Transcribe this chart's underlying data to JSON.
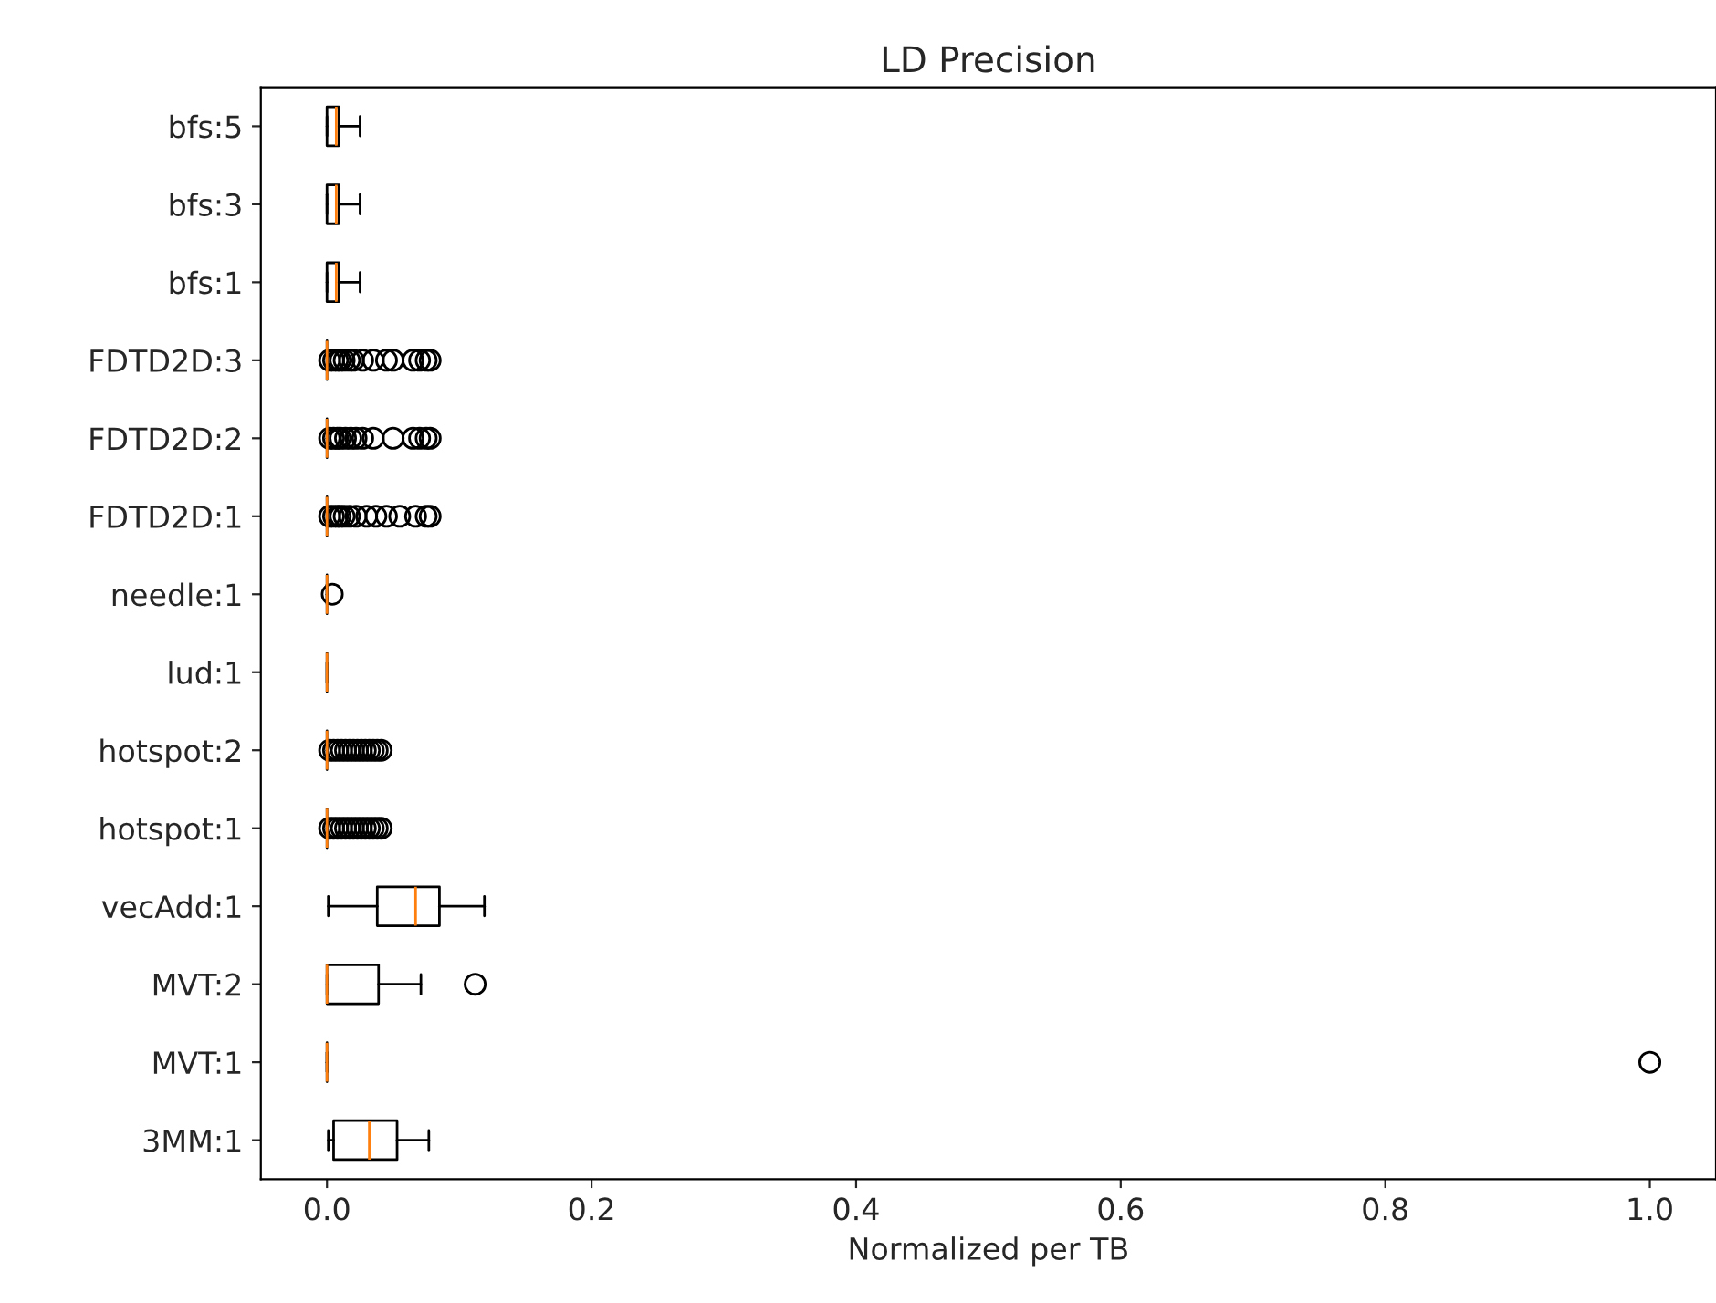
{
  "chart_data": {
    "type": "box",
    "title": "LD Precision",
    "xlabel": "Normalized per TB",
    "orientation": "horizontal",
    "categories": [
      "bfs:5",
      "bfs:3",
      "bfs:1",
      "FDTD2D:3",
      "FDTD2D:2",
      "FDTD2D:1",
      "needle:1",
      "lud:1",
      "hotspot:2",
      "hotspot:1",
      "vecAdd:1",
      "MVT:2",
      "MVT:1",
      "3MM:1"
    ],
    "boxes": [
      {
        "low": 0,
        "q1": 0,
        "median": 0.007,
        "q3": 0.009,
        "high": 0.025
      },
      {
        "low": 0,
        "q1": 0,
        "median": 0.007,
        "q3": 0.009,
        "high": 0.025
      },
      {
        "low": 0,
        "q1": 0,
        "median": 0.007,
        "q3": 0.009,
        "high": 0.025
      },
      {
        "low": 0,
        "q1": 0,
        "median": 0,
        "q3": 0,
        "high": 0,
        "outliers": [
          0.002,
          0.005,
          0.008,
          0.01,
          0.013,
          0.017,
          0.02,
          0.027,
          0.035,
          0.045,
          0.05,
          0.065,
          0.07,
          0.075,
          0.078
        ]
      },
      {
        "low": 0,
        "q1": 0,
        "median": 0,
        "q3": 0,
        "high": 0,
        "outliers": [
          0.002,
          0.005,
          0.008,
          0.01,
          0.014,
          0.018,
          0.022,
          0.027,
          0.035,
          0.05,
          0.065,
          0.07,
          0.075,
          0.078
        ]
      },
      {
        "low": 0,
        "q1": 0,
        "median": 0,
        "q3": 0,
        "high": 0,
        "outliers": [
          0.002,
          0.005,
          0.008,
          0.01,
          0.013,
          0.017,
          0.022,
          0.03,
          0.037,
          0.045,
          0.055,
          0.067,
          0.075,
          0.078
        ]
      },
      {
        "low": 0,
        "q1": 0,
        "median": 0,
        "q3": 0,
        "high": 0,
        "outliers": [
          0.004
        ]
      },
      {
        "low": 0,
        "q1": 0,
        "median": 0,
        "q3": 0,
        "high": 0
      },
      {
        "low": 0,
        "q1": 0,
        "median": 0,
        "q3": 0,
        "high": 0,
        "outliers": [
          0.002,
          0.005,
          0.008,
          0.011,
          0.014,
          0.017,
          0.02,
          0.023,
          0.026,
          0.029,
          0.032,
          0.035,
          0.038,
          0.041
        ]
      },
      {
        "low": 0,
        "q1": 0,
        "median": 0,
        "q3": 0,
        "high": 0,
        "outliers": [
          0.002,
          0.005,
          0.008,
          0.011,
          0.014,
          0.017,
          0.02,
          0.023,
          0.026,
          0.029,
          0.032,
          0.035,
          0.038,
          0.041
        ]
      },
      {
        "low": 0.001,
        "q1": 0.038,
        "median": 0.067,
        "q3": 0.085,
        "high": 0.119
      },
      {
        "low": 0,
        "q1": 0,
        "median": 0,
        "q3": 0.039,
        "high": 0.071,
        "outliers": [
          0.112
        ]
      },
      {
        "low": 0,
        "q1": 0,
        "median": 0,
        "q3": 0,
        "high": 0,
        "outliers": [
          1.0
        ]
      },
      {
        "low": 0.001,
        "q1": 0.005,
        "median": 0.032,
        "q3": 0.053,
        "high": 0.077
      }
    ],
    "xlim": [
      -0.05,
      1.05
    ],
    "xticks": [
      {
        "value": 0,
        "label": "0.0"
      },
      {
        "value": 0.2,
        "label": "0.2"
      },
      {
        "value": 0.4,
        "label": "0.4"
      },
      {
        "value": 0.6,
        "label": "0.6"
      },
      {
        "value": 0.8,
        "label": "0.8"
      },
      {
        "value": 1.0,
        "label": "1.0"
      }
    ]
  }
}
